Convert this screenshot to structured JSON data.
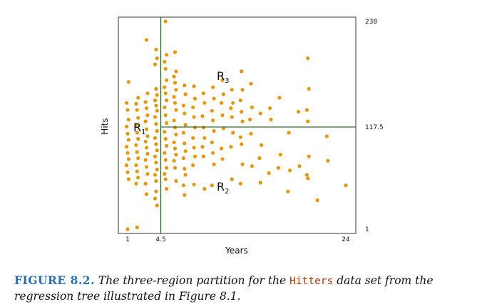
{
  "chart_data": {
    "type": "scatter",
    "xlabel": "Years",
    "ylabel": "Hits",
    "x_ticks": [
      "1",
      "4.5",
      "24"
    ],
    "y_ticks": [
      "1",
      "117.5",
      "238"
    ],
    "xlim": [
      1,
      24
    ],
    "ylim": [
      1,
      238
    ],
    "partition": {
      "years_split": 4.5,
      "hits_split": 117.5
    },
    "regions": [
      {
        "letter": "R",
        "sub": "1",
        "x": 2.2,
        "y": 117.5
      },
      {
        "letter": "R",
        "sub": "2",
        "x": 11.0,
        "y": 50
      },
      {
        "letter": "R",
        "sub": "3",
        "x": 11.0,
        "y": 176
      }
    ],
    "colors": {
      "points": "#e0980f",
      "partition": "#1e5a1e",
      "figure_label": "#2a6fab",
      "code": "#9a3b12"
    },
    "series": [
      {
        "points": [
          [
            1,
            1
          ],
          [
            2,
            3
          ],
          [
            1,
            169
          ],
          [
            1,
            145
          ],
          [
            1,
            137
          ],
          [
            1,
            126
          ],
          [
            1,
            118
          ],
          [
            1,
            110
          ],
          [
            1,
            103
          ],
          [
            1,
            95
          ],
          [
            1,
            88
          ],
          [
            1,
            81
          ],
          [
            1,
            74
          ],
          [
            1,
            66
          ],
          [
            1,
            58
          ],
          [
            2,
            151
          ],
          [
            2,
            144
          ],
          [
            2,
            137
          ],
          [
            2,
            128
          ],
          [
            2,
            120
          ],
          [
            2,
            111
          ],
          [
            2,
            104
          ],
          [
            2,
            97
          ],
          [
            2,
            89
          ],
          [
            2,
            82
          ],
          [
            2,
            74
          ],
          [
            2,
            67
          ],
          [
            2,
            60
          ],
          [
            2,
            53
          ],
          [
            3,
            217
          ],
          [
            3,
            156
          ],
          [
            3,
            146
          ],
          [
            3,
            139
          ],
          [
            3,
            131
          ],
          [
            3,
            124
          ],
          [
            3,
            115
          ],
          [
            3,
            107
          ],
          [
            3,
            101
          ],
          [
            3,
            94
          ],
          [
            3,
            87
          ],
          [
            3,
            80
          ],
          [
            3,
            72
          ],
          [
            3,
            64
          ],
          [
            3,
            53
          ],
          [
            3,
            41
          ],
          [
            4,
            206
          ],
          [
            4,
            196
          ],
          [
            4,
            189
          ],
          [
            4,
            161
          ],
          [
            4,
            154
          ],
          [
            4,
            148
          ],
          [
            4,
            142
          ],
          [
            4,
            136
          ],
          [
            4,
            129
          ],
          [
            4,
            121
          ],
          [
            4,
            113
          ],
          [
            4,
            105
          ],
          [
            4,
            98
          ],
          [
            4,
            91
          ],
          [
            4,
            84
          ],
          [
            4,
            77
          ],
          [
            4,
            69
          ],
          [
            4,
            63
          ],
          [
            4,
            56
          ],
          [
            4,
            28
          ],
          [
            4,
            36
          ],
          [
            4,
            44
          ],
          [
            5,
            238
          ],
          [
            5,
            200
          ],
          [
            5,
            192
          ],
          [
            5,
            184
          ],
          [
            5,
            171
          ],
          [
            5,
            163
          ],
          [
            5,
            156
          ],
          [
            5,
            148
          ],
          [
            5,
            140
          ],
          [
            5,
            131
          ],
          [
            5,
            122
          ],
          [
            5,
            112
          ],
          [
            5,
            104
          ],
          [
            5,
            96
          ],
          [
            5,
            88
          ],
          [
            5,
            80
          ],
          [
            5,
            71
          ],
          [
            5,
            64
          ],
          [
            5,
            58
          ],
          [
            5,
            47
          ],
          [
            6,
            203
          ],
          [
            6,
            181
          ],
          [
            6,
            175
          ],
          [
            6,
            168
          ],
          [
            6,
            160
          ],
          [
            6,
            152
          ],
          [
            6,
            145
          ],
          [
            6,
            137
          ],
          [
            6,
            125
          ],
          [
            6,
            117
          ],
          [
            6,
            109
          ],
          [
            6,
            100
          ],
          [
            6,
            93
          ],
          [
            6,
            86
          ],
          [
            6,
            79
          ],
          [
            6,
            71
          ],
          [
            6,
            56
          ],
          [
            7,
            165
          ],
          [
            7,
            155
          ],
          [
            7,
            142
          ],
          [
            7,
            133
          ],
          [
            7,
            120
          ],
          [
            7,
            111
          ],
          [
            7,
            99
          ],
          [
            7,
            90
          ],
          [
            7,
            82
          ],
          [
            7,
            70
          ],
          [
            7,
            63
          ],
          [
            7,
            51
          ],
          [
            7,
            40
          ],
          [
            8,
            164
          ],
          [
            8,
            150
          ],
          [
            8,
            140
          ],
          [
            8,
            129
          ],
          [
            8,
            117
          ],
          [
            8,
            105
          ],
          [
            8,
            94
          ],
          [
            8,
            84
          ],
          [
            8,
            74
          ],
          [
            8,
            52
          ],
          [
            9,
            156
          ],
          [
            9,
            145
          ],
          [
            9,
            130
          ],
          [
            9,
            117
          ],
          [
            9,
            105
          ],
          [
            9,
            95
          ],
          [
            9,
            84
          ],
          [
            9,
            47
          ],
          [
            10,
            163
          ],
          [
            10,
            150
          ],
          [
            10,
            136
          ],
          [
            10,
            125
          ],
          [
            10,
            113
          ],
          [
            10,
            100
          ],
          [
            10,
            88
          ],
          [
            10,
            75
          ],
          [
            10,
            51
          ],
          [
            11,
            171
          ],
          [
            11,
            155
          ],
          [
            11,
            145
          ],
          [
            11,
            131
          ],
          [
            11,
            116
          ],
          [
            11,
            93
          ],
          [
            11,
            81
          ],
          [
            12,
            160
          ],
          [
            12,
            145
          ],
          [
            12,
            139
          ],
          [
            12,
            129
          ],
          [
            12,
            111
          ],
          [
            12,
            95
          ],
          [
            12,
            58
          ],
          [
            13,
            181
          ],
          [
            13,
            160
          ],
          [
            13,
            148
          ],
          [
            13,
            135
          ],
          [
            13,
            124
          ],
          [
            13,
            106
          ],
          [
            13,
            98
          ],
          [
            13,
            75
          ],
          [
            13,
            53
          ],
          [
            14,
            167
          ],
          [
            14,
            140
          ],
          [
            14,
            126
          ],
          [
            14,
            110
          ],
          [
            14,
            73
          ],
          [
            15,
            133
          ],
          [
            15,
            97
          ],
          [
            15,
            82
          ],
          [
            15,
            54
          ],
          [
            16,
            139
          ],
          [
            16,
            126
          ],
          [
            16,
            65
          ],
          [
            17,
            151
          ],
          [
            17,
            86
          ],
          [
            17,
            71
          ],
          [
            18,
            111
          ],
          [
            18,
            68
          ],
          [
            18,
            44
          ],
          [
            19,
            135
          ],
          [
            19,
            73
          ],
          [
            20,
            196
          ],
          [
            20,
            161
          ],
          [
            20,
            137
          ],
          [
            20,
            124
          ],
          [
            20,
            84
          ],
          [
            20,
            63
          ],
          [
            20,
            59
          ],
          [
            21,
            34
          ],
          [
            22,
            107
          ],
          [
            22,
            79
          ],
          [
            24,
            51
          ]
        ]
      }
    ]
  },
  "caption": {
    "label": "FIGURE 8.2.",
    "text_before": "The three-region partition for the",
    "code": "Hitters",
    "text_after": "data set from the regression tree illustrated in Figure 8.1."
  }
}
